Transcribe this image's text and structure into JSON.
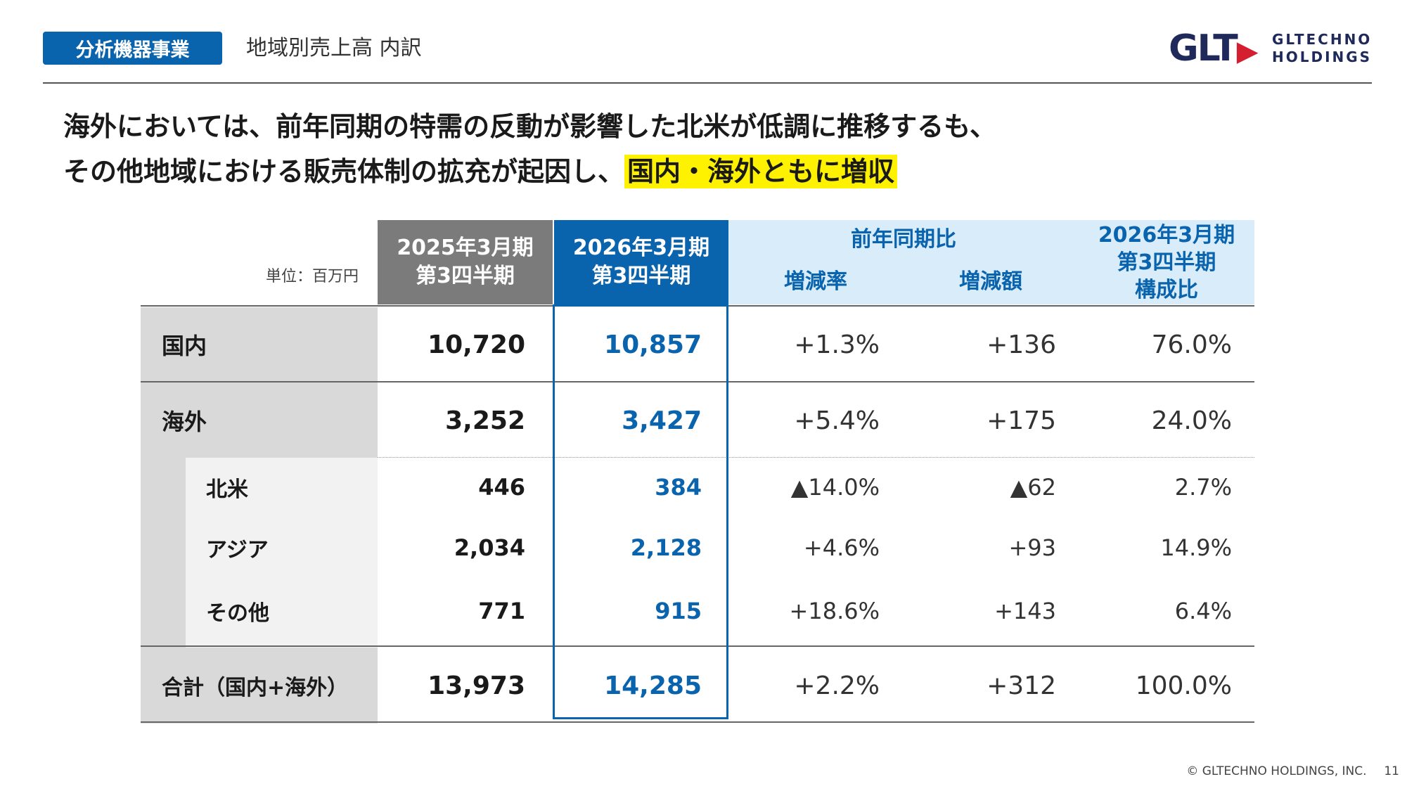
{
  "header": {
    "badge": "分析機器事業",
    "title": "地域別売上高 内訳",
    "logo_mark": "GLT",
    "logo_text_line1": "GLTECHNO",
    "logo_text_line2": "HOLDINGS"
  },
  "headline": {
    "line1": "海外においては、前年同期の特需の反動が影響した北米が低調に推移するも、",
    "line2": "その他地域における販売体制の拡充が起因し、",
    "highlight": "国内・海外ともに増収"
  },
  "table": {
    "unit": "単位：百万円",
    "col_2025": [
      "2025年3月期",
      "第3四半期"
    ],
    "col_2026": [
      "2026年3月期",
      "第3四半期"
    ],
    "yoy": "前年同期比",
    "rate": "増減率",
    "amount": "増減額",
    "composition": [
      "2026年3月期",
      "第3四半期",
      "構成比"
    ],
    "rows": [
      {
        "label": "国内",
        "v2025": "10,720",
        "v2026": "10,857",
        "rate": "+1.3%",
        "amount": "+136",
        "comp": "76.0%"
      },
      {
        "label": "海外",
        "v2025": "3,252",
        "v2026": "3,427",
        "rate": "+5.4%",
        "amount": "+175",
        "comp": "24.0%"
      },
      {
        "label": "北米",
        "v2025": "446",
        "v2026": "384",
        "rate": "▲14.0%",
        "amount": "▲62",
        "comp": "2.7%"
      },
      {
        "label": "アジア",
        "v2025": "2,034",
        "v2026": "2,128",
        "rate": "+4.6%",
        "amount": "+93",
        "comp": "14.9%"
      },
      {
        "label": "その他",
        "v2025": "771",
        "v2026": "915",
        "rate": "+18.6%",
        "amount": "+143",
        "comp": "6.4%"
      },
      {
        "label": "合計（国内+海外）",
        "v2025": "13,973",
        "v2026": "14,285",
        "rate": "+2.2%",
        "amount": "+312",
        "comp": "100.0%"
      }
    ]
  },
  "footer": {
    "copyright": "© GLTECHNO HOLDINGS, INC.",
    "page": "11"
  },
  "colors": {
    "brand_blue": "#0a63ad",
    "header_gray": "#7b7b7b",
    "header_light_blue": "#d8ecfa",
    "label_gray": "#d9d9d9",
    "sublabel_gray": "#f2f2f2",
    "highlight_yellow": "#fff200"
  }
}
